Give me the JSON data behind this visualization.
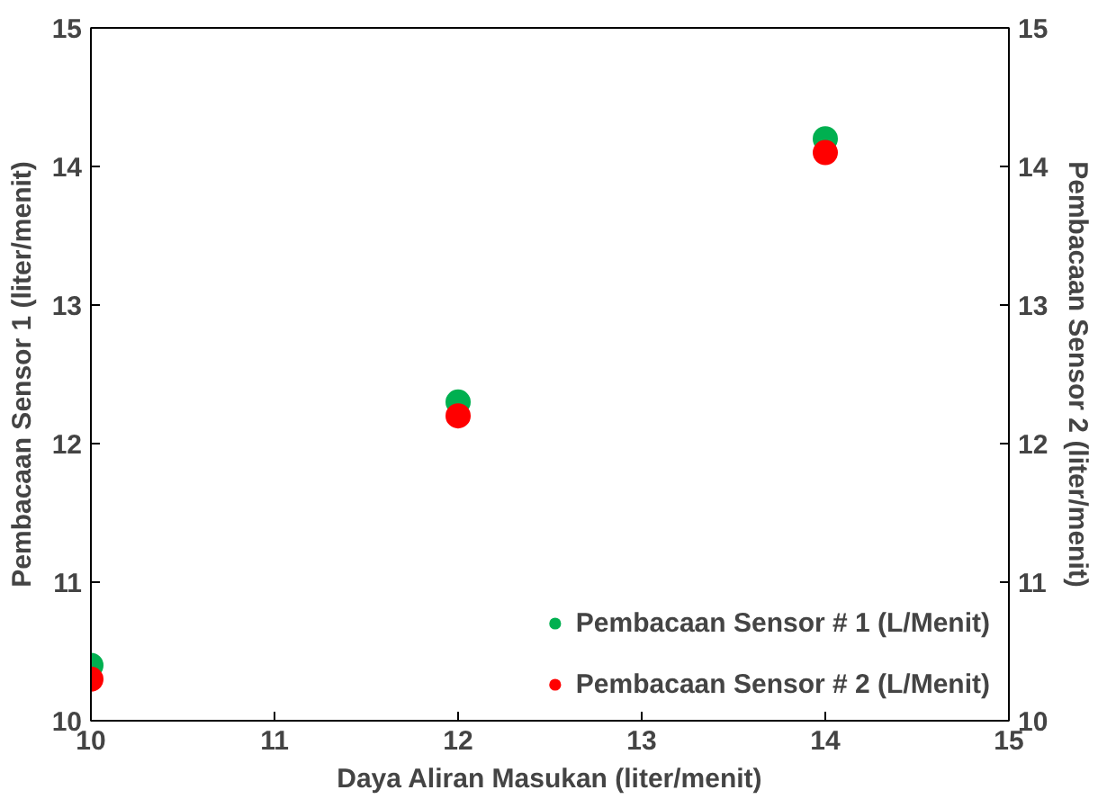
{
  "chart_data": {
    "type": "scatter",
    "xlabel": "Daya Aliran Masukan (liter/menit)",
    "ylabel": "Pembacaan Sensor 1 (liter/menit)",
    "y2label": "Pembacaan Sensor 2 (liter/menit)",
    "x": [
      10,
      12,
      14
    ],
    "series": [
      {
        "name": "Pembacaan Sensor # 1 (L/Menit)",
        "color": "#00b050",
        "values": [
          10.4,
          12.3,
          14.2
        ]
      },
      {
        "name": "Pembacaan Sensor # 2 (L/Menit)",
        "color": "#ff0000",
        "values": [
          10.3,
          12.2,
          14.1
        ],
        "axis": "y2"
      }
    ],
    "xlim": [
      10,
      15
    ],
    "xticks": [
      10,
      11,
      12,
      13,
      14,
      15
    ],
    "ylim": [
      10,
      15
    ],
    "yticks": [
      10,
      11,
      12,
      13,
      14,
      15
    ],
    "y2lim": [
      10,
      15
    ],
    "y2ticks": [
      10,
      11,
      12,
      13,
      14,
      15
    ],
    "grid": false,
    "legend": "bottom right",
    "marker": "circle"
  }
}
